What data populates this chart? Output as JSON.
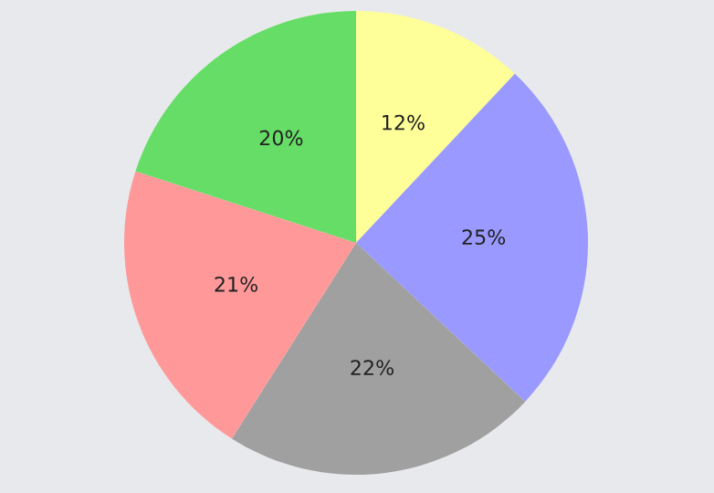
{
  "chart_data": {
    "type": "pie",
    "categories": [
      null,
      null,
      null,
      null,
      null
    ],
    "values": [
      12,
      25,
      22,
      21,
      20
    ],
    "colors": [
      "#ffff99",
      "#9999ff",
      "#a0a0a0",
      "#ff9999",
      "#66dd66"
    ],
    "value_labels": [
      "12%",
      "25%",
      "22%",
      "21%",
      "20%"
    ]
  }
}
